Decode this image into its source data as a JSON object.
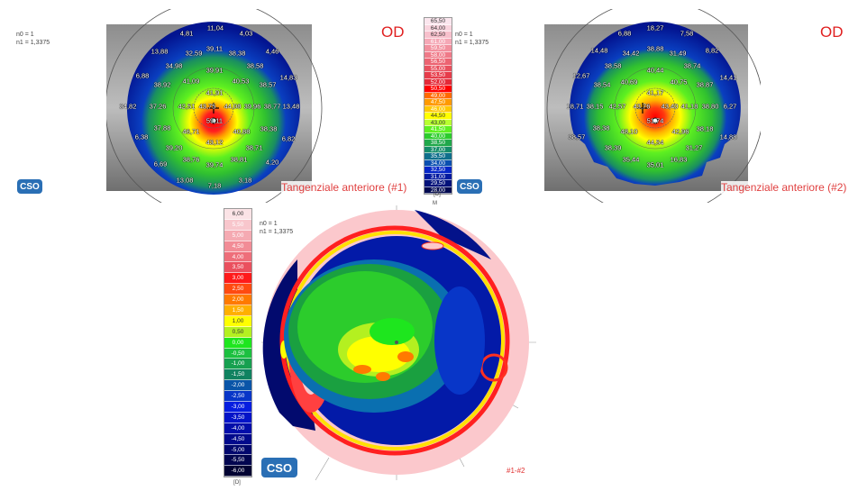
{
  "map1": {
    "refraction": {
      "n0": "n0 = 1",
      "n1": "n1 = 1,3375"
    },
    "eye": "OD",
    "title": "Tangenziale anteriore (#1)",
    "labels": [
      "11,04",
      "4,81",
      "4,03",
      "13,88",
      "32,59",
      "39,11",
      "38,38",
      "4,46",
      "34,98",
      "39,91",
      "38,58",
      "6,88",
      "38,92",
      "41,09",
      "40,53",
      "38,57",
      "14,83",
      "41,91",
      "34,82",
      "37,26",
      "42,51",
      "43,75",
      "44,08",
      "39,96",
      "38,77",
      "13,48",
      "59,11",
      "37,88",
      "46,71",
      "40,88",
      "38,38",
      "6,38",
      "6,82",
      "43,12",
      "39,20",
      "38,71",
      "6,69",
      "38,76",
      "39,74",
      "38,81",
      "4,20",
      "13,08",
      "7,18",
      "3,18"
    ],
    "logo": "CSO"
  },
  "map2": {
    "refraction": {
      "n0": "n0 = 1",
      "n1": "n1 = 1,3375"
    },
    "eye": "OD",
    "title": "Tangenziale anteriore (#2)",
    "labels": [
      "18,27",
      "6,88",
      "7,58",
      "14,48",
      "34,42",
      "38,88",
      "31,49",
      "8,82",
      "38,58",
      "38,74",
      "40,44",
      "12,67",
      "38,54",
      "40,69",
      "40,75",
      "38,87",
      "14,41",
      "41,17",
      "18,71",
      "38,15",
      "42,57",
      "43,76",
      "43,40",
      "41,18",
      "38,80",
      "6,27",
      "51,74",
      "38,38",
      "48,10",
      "42,96",
      "38,18",
      "38,57",
      "14,88",
      "44,54",
      "38,39",
      "31,27",
      "35,44",
      "35,01",
      "16,83"
    ],
    "logo": "CSO"
  },
  "curvature_scale": {
    "unit": "[D]",
    "values": [
      "65,50",
      "64,00",
      "62,50",
      "61,00",
      "59,50",
      "58,00",
      "56,50",
      "55,00",
      "53,50",
      "52,00",
      "50,50",
      "49,00",
      "47,50",
      "46,00",
      "44,50",
      "43,00",
      "41,50",
      "40,00",
      "38,50",
      "37,00",
      "35,50",
      "34,00",
      "32,50",
      "31,00",
      "29,50",
      "28,00"
    ],
    "colors": [
      "#fbe6ee",
      "#f9d4de",
      "#f7c0cc",
      "#f5a8b6",
      "#f2909e",
      "#ef7a88",
      "#ec6472",
      "#e9505e",
      "#e63c4a",
      "#e42a38",
      "#ff0000",
      "#ff6a00",
      "#ff9a00",
      "#ffc800",
      "#ffff00",
      "#b8ff30",
      "#5ef020",
      "#2ccc2c",
      "#20a84a",
      "#158c6a",
      "#0f6f8c",
      "#0a4fb0",
      "#0626c8",
      "#041aa0",
      "#03127a",
      "#020a50"
    ]
  },
  "difference_scale": {
    "unit": "[D]",
    "values": [
      "6,00",
      "5,50",
      "5,00",
      "4,50",
      "4,00",
      "3,50",
      "3,00",
      "2,50",
      "2,00",
      "1,50",
      "1,00",
      "0,50",
      "0,00",
      "-0,50",
      "-1,00",
      "-1,50",
      "-2,00",
      "-2,50",
      "-3,00",
      "-3,50",
      "-4,00",
      "-4,50",
      "-5,00",
      "-5,50",
      "-6,00"
    ],
    "colors": [
      "#fbe3e6",
      "#f8c6cc",
      "#f5aab2",
      "#f28c96",
      "#ee6e7a",
      "#ea505e",
      "#ff1a1a",
      "#ff4a10",
      "#ff7a00",
      "#ffb000",
      "#ffff00",
      "#b4f020",
      "#1ee61e",
      "#1cc040",
      "#17a050",
      "#108260",
      "#0a55a8",
      "#0836c8",
      "#061ee0",
      "#0414c8",
      "#030eaa",
      "#020a8c",
      "#02086e",
      "#020650",
      "#010332"
    ]
  },
  "difference_map": {
    "refraction": {
      "n0": "n0 = 1",
      "n1": "n1 = 1,3375"
    },
    "label": "#1-#2",
    "logo": "CSO",
    "axis_marker": "M"
  }
}
